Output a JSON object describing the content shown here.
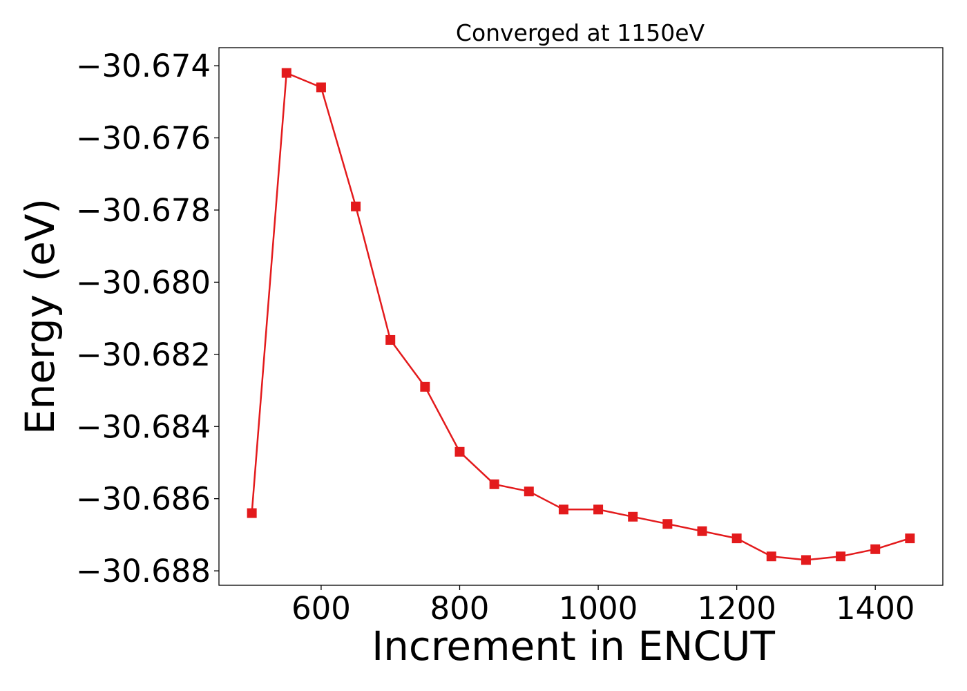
{
  "chart_data": {
    "type": "line",
    "title": "Converged at 1150eV",
    "xlabel": "Increment in ENCUT",
    "ylabel": "Energy (eV)",
    "xlim": [
      452.5,
      1497.5
    ],
    "ylim": [
      -30.6884,
      -30.6735
    ],
    "xticks": [
      600,
      800,
      1000,
      1200,
      1400
    ],
    "xtick_labels": [
      "600",
      "800",
      "1000",
      "1200",
      "1400"
    ],
    "yticks": [
      -30.674,
      -30.676,
      -30.678,
      -30.68,
      -30.682,
      -30.684,
      -30.686,
      -30.688
    ],
    "ytick_labels": [
      "−30.674",
      "−30.676",
      "−30.678",
      "−30.680",
      "−30.682",
      "−30.684",
      "−30.686",
      "−30.688"
    ],
    "grid": false,
    "series": [
      {
        "color": "#e31a1c",
        "marker": "square",
        "x": [
          500,
          550,
          600,
          650,
          700,
          750,
          800,
          850,
          900,
          950,
          1000,
          1050,
          1100,
          1150,
          1200,
          1250,
          1300,
          1350,
          1400,
          1450
        ],
        "y": [
          -30.6864,
          -30.6742,
          -30.6746,
          -30.6779,
          -30.6816,
          -30.6829,
          -30.6847,
          -30.6856,
          -30.6858,
          -30.6863,
          -30.6863,
          -30.6865,
          -30.6867,
          -30.6869,
          -30.6871,
          -30.6876,
          -30.6877,
          -30.6876,
          -30.6874,
          -30.6871
        ]
      }
    ]
  }
}
